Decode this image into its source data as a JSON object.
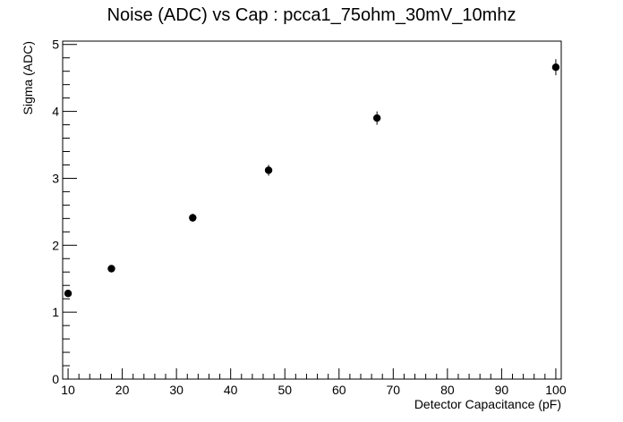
{
  "chart_data": {
    "type": "scatter",
    "title": "Noise (ADC) vs Cap : pcca1_75ohm_30mV_10mhz",
    "xlabel": "Detector Capacitance (pF)",
    "ylabel": "Sigma (ADC)",
    "xlim": [
      9,
      101
    ],
    "ylim": [
      0,
      5.05
    ],
    "x_ticks": [
      10,
      20,
      30,
      40,
      50,
      60,
      70,
      80,
      90,
      100
    ],
    "y_ticks": [
      0,
      1,
      2,
      3,
      4,
      5
    ],
    "grid": false,
    "marker_color": "#000000",
    "series": [
      {
        "points": [
          {
            "x": 10,
            "y": 1.28,
            "err": 0.05
          },
          {
            "x": 18,
            "y": 1.65,
            "err": 0.05
          },
          {
            "x": 33,
            "y": 2.41,
            "err": 0.06
          },
          {
            "x": 47,
            "y": 3.12,
            "err": 0.08
          },
          {
            "x": 67,
            "y": 3.9,
            "err": 0.1
          },
          {
            "x": 100,
            "y": 4.66,
            "err": 0.12
          }
        ]
      }
    ]
  }
}
